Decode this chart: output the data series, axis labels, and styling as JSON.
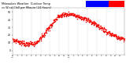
{
  "title": "Milwaukee Weather  Outdoor Temp vs Wind Chill per Minute (24 Hours)",
  "bg_color": "#ffffff",
  "temp_color": "#ff0000",
  "wind_color": "#dd0000",
  "legend_blue_color": "#0000ff",
  "legend_red_color": "#ff0000",
  "xlim": [
    0,
    1440
  ],
  "ylim": [
    -5,
    55
  ],
  "ytick_vals": [
    0,
    10,
    20,
    30,
    40,
    50
  ],
  "ytick_labels": [
    "0",
    "10",
    "20",
    "30",
    "40",
    "50"
  ],
  "grid_x_positions": [
    0,
    120,
    240,
    360,
    480,
    600,
    720,
    840,
    960,
    1080,
    1200,
    1320,
    1440
  ],
  "hour_labels": [
    "12\nAM",
    "1",
    "2",
    "3",
    "4",
    "5",
    "6",
    "7",
    "8",
    "9",
    "10",
    "11",
    "12\nPM",
    "1",
    "2",
    "3",
    "4",
    "5",
    "6",
    "7",
    "8",
    "9",
    "10",
    "11",
    ""
  ],
  "hour_positions": [
    0,
    60,
    120,
    180,
    240,
    300,
    360,
    420,
    480,
    540,
    600,
    660,
    720,
    780,
    840,
    900,
    960,
    1020,
    1080,
    1140,
    1200,
    1260,
    1320,
    1380,
    1440
  ]
}
